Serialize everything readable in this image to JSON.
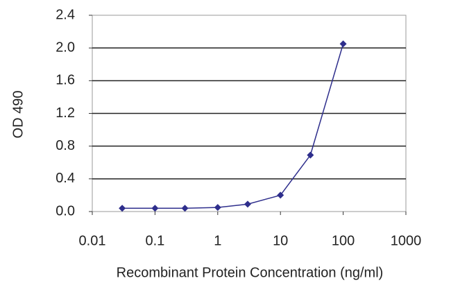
{
  "chart_data": {
    "type": "line",
    "x_label": "Recombinant Protein Concentration (ng/ml)",
    "y_label": "OD 490",
    "x": [
      0.03,
      0.1,
      0.3,
      1,
      3,
      10,
      30,
      100
    ],
    "series": [
      {
        "color": "#2e2e8c",
        "values": [
          0.04,
          0.04,
          0.04,
          0.05,
          0.09,
          0.2,
          0.69,
          2.05
        ]
      }
    ],
    "xscale": "log",
    "xlim": [
      0.01,
      1000
    ],
    "xticks": [
      0.01,
      0.1,
      1,
      10,
      100,
      1000
    ],
    "ylim": [
      0,
      2.4
    ],
    "yticks": [
      {
        "value": 0,
        "label": "0.0"
      },
      {
        "value": 0.4,
        "label": "0.4"
      },
      {
        "value": 0.8,
        "label": "0.8"
      },
      {
        "value": 1.2,
        "label": "1.2"
      },
      {
        "value": 1.6,
        "label": "1.6"
      },
      {
        "value": 2.0,
        "label": "2.0"
      },
      {
        "value": 2.4,
        "label": "2.4"
      }
    ],
    "grid": true
  }
}
